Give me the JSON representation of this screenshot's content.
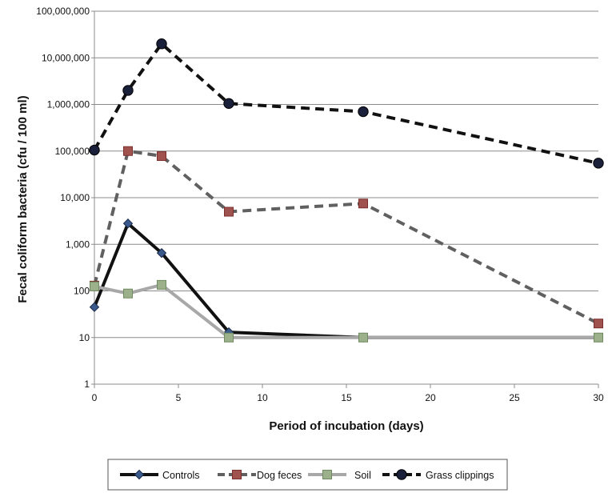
{
  "chart_data": {
    "type": "line",
    "title": "",
    "xlabel": "Period of incubation (days)",
    "ylabel": "Fecal coliform bacteria (cfu / 100 ml)",
    "xlim": [
      0,
      30
    ],
    "ylim": [
      1,
      100000000
    ],
    "yscale": "log",
    "grid": "horizontal",
    "legend_position": "bottom",
    "x_ticks": [
      0,
      5,
      10,
      15,
      20,
      25,
      30
    ],
    "x_tick_labels": [
      "0",
      "5",
      "10",
      "15",
      "20",
      "25",
      "30"
    ],
    "y_ticks": [
      1,
      10,
      100,
      1000,
      10000,
      100000,
      1000000,
      10000000,
      100000000
    ],
    "y_tick_labels": [
      "1",
      "10",
      "100",
      "1,000",
      "10,000",
      "100,000",
      "1,000,000",
      "10,000,000",
      "100,000,000"
    ],
    "series": [
      {
        "name": "Controls",
        "color": "#111111",
        "dash": "solid",
        "marker": "diamond",
        "marker_fill": "#3a5a8c",
        "x": [
          0,
          2,
          4,
          8,
          16,
          30
        ],
        "values": [
          45,
          2800,
          650,
          13,
          10,
          10
        ]
      },
      {
        "name": "Dog feces",
        "color": "#606060",
        "dash": "dashed",
        "marker": "square",
        "marker_fill": "#a0524e",
        "x": [
          0,
          2,
          4,
          8,
          16,
          30
        ],
        "values": [
          130,
          100000,
          78000,
          5000,
          7500,
          20
        ]
      },
      {
        "name": "Soil",
        "color": "#a8a8a8",
        "dash": "solid",
        "marker": "square",
        "marker_fill": "#9cb08c",
        "x": [
          0,
          2,
          4,
          8,
          16,
          30
        ],
        "values": [
          125,
          88,
          135,
          10,
          10,
          10
        ]
      },
      {
        "name": "Grass clippings",
        "color": "#111111",
        "dash": "dashed",
        "marker": "circle",
        "marker_fill": "#1a1f3a",
        "x": [
          0,
          2,
          4,
          8,
          16,
          30
        ],
        "values": [
          105000,
          2000000,
          20000000,
          1050000,
          700000,
          55000
        ]
      }
    ]
  }
}
